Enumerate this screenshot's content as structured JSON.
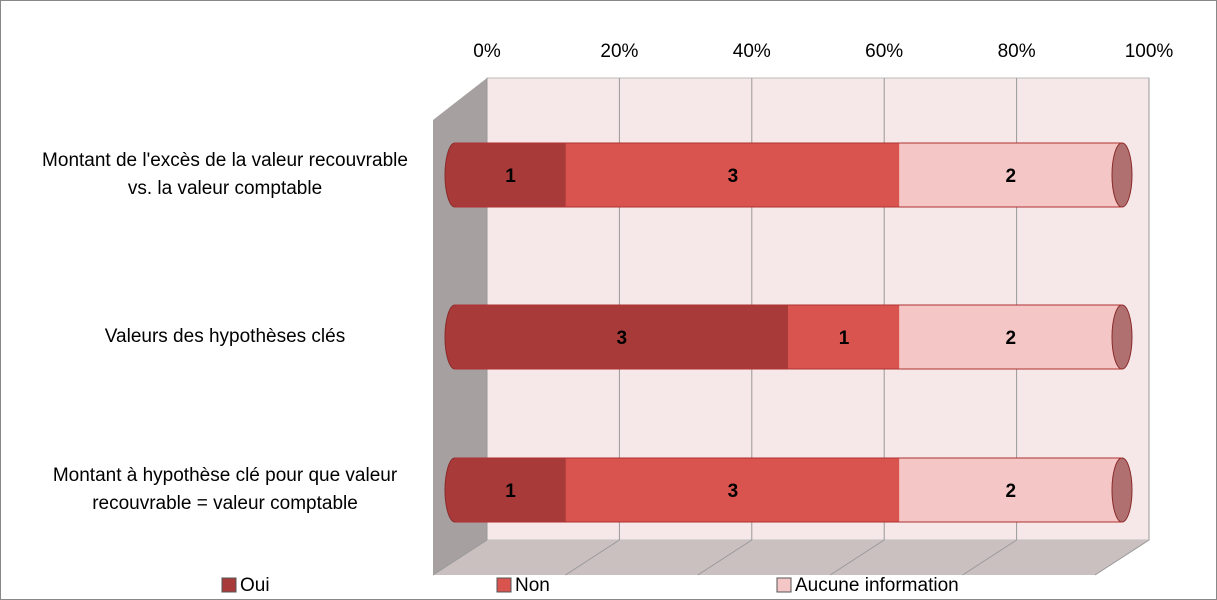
{
  "chart_data": {
    "type": "bar",
    "orientation": "horizontal",
    "stacking": "percent",
    "categories": [
      "Montant de l'excès de la valeur recouvrable vs. la valeur comptable",
      "Valeurs des hypothèses clés",
      "Montant à hypothèse clé pour que valeur recouvrable = valeur comptable"
    ],
    "series": [
      {
        "name": "Oui",
        "color": "#a83a3a",
        "values": [
          1,
          3,
          1
        ]
      },
      {
        "name": "Non",
        "color": "#d9534f",
        "values": [
          3,
          1,
          3
        ]
      },
      {
        "name": "Aucune information",
        "color": "#f4c6c6",
        "values": [
          2,
          2,
          2
        ]
      }
    ],
    "xlim": [
      0,
      100
    ],
    "xticks": [
      {
        "value": 0,
        "label": "0%"
      },
      {
        "value": 20,
        "label": "20%"
      },
      {
        "value": 40,
        "label": "40%"
      },
      {
        "value": 60,
        "label": "60%"
      },
      {
        "value": 80,
        "label": "80%"
      },
      {
        "value": 100,
        "label": "100%"
      }
    ],
    "grid": true,
    "legend": "bottom"
  }
}
